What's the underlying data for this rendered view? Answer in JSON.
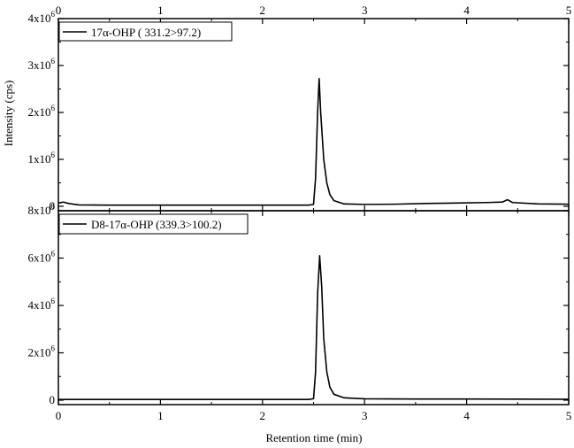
{
  "chart_data": {
    "type": "line",
    "xlabel": "Retention time (min)",
    "ylabel": "Intensity (cps)",
    "xlim": [
      0,
      5
    ],
    "x_ticks": [
      "0",
      "1",
      "2",
      "3",
      "4",
      "5"
    ],
    "grid": false,
    "panels": [
      {
        "legend": "17α-OHP ( 331.2>97.2)",
        "legend_position": "top-left",
        "ylim": [
          0,
          4000000
        ],
        "y_ticks": [
          {
            "base": "0",
            "exp": ""
          },
          {
            "base": "1x10",
            "exp": "6"
          },
          {
            "base": "2x10",
            "exp": "6"
          },
          {
            "base": "3x10",
            "exp": "6"
          },
          {
            "base": "4x10",
            "exp": "6"
          }
        ],
        "y_tick_values": [
          0,
          1000000,
          2000000,
          3000000,
          4000000
        ],
        "series": [
          {
            "x": [
              0.0,
              0.05,
              0.1,
              0.2,
              0.5,
              1.0,
              1.5,
              2.0,
              2.3,
              2.45,
              2.5,
              2.52,
              2.54,
              2.555,
              2.57,
              2.6,
              2.63,
              2.66,
              2.7,
              2.8,
              3.0,
              3.3,
              3.6,
              3.9,
              4.2,
              4.35,
              4.4,
              4.45,
              4.7,
              5.0
            ],
            "y": [
              70000,
              90000,
              60000,
              30000,
              25000,
              25000,
              25000,
              25000,
              25000,
              25000,
              40000,
              600000,
              2000000,
              2720000,
              2000000,
              1000000,
              500000,
              250000,
              120000,
              50000,
              40000,
              45000,
              60000,
              70000,
              80000,
              90000,
              140000,
              80000,
              50000,
              45000
            ]
          }
        ]
      },
      {
        "legend": "D8-17α-OHP (339.3>100.2)",
        "legend_position": "top-left",
        "ylim": [
          0,
          8000000
        ],
        "y_ticks": [
          {
            "base": "0",
            "exp": ""
          },
          {
            "base": "2x10",
            "exp": "6"
          },
          {
            "base": "4x10",
            "exp": "6"
          },
          {
            "base": "6x10",
            "exp": "6"
          },
          {
            "base": "8x10",
            "exp": "6"
          }
        ],
        "y_tick_values": [
          0,
          2000000,
          4000000,
          6000000,
          8000000
        ],
        "series": [
          {
            "x": [
              0.0,
              0.5,
              1.0,
              1.5,
              2.0,
              2.3,
              2.45,
              2.5,
              2.52,
              2.54,
              2.56,
              2.58,
              2.6,
              2.63,
              2.66,
              2.7,
              2.8,
              3.0,
              3.5,
              4.0,
              4.5,
              5.0
            ],
            "y": [
              30000,
              30000,
              30000,
              30000,
              30000,
              30000,
              30000,
              60000,
              1200000,
              4500000,
              6100000,
              4800000,
              2600000,
              1200000,
              550000,
              250000,
              100000,
              60000,
              50000,
              50000,
              45000,
              40000
            ]
          }
        ]
      }
    ]
  }
}
